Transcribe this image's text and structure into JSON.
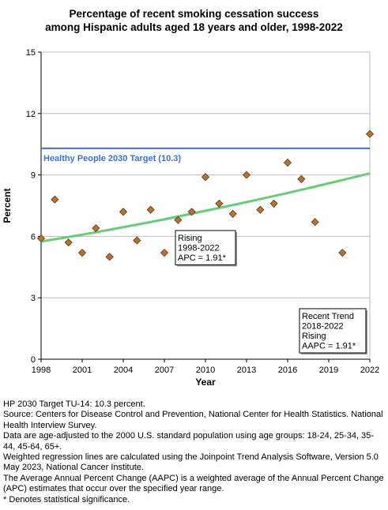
{
  "title": {
    "line1": "Percentage of recent smoking cessation success",
    "line2": "among Hispanic adults aged 18 years and older, 1998-2022"
  },
  "chart_data": {
    "type": "scatter",
    "xlabel": "Year",
    "ylabel": "Percent",
    "xlim": [
      1998,
      2022
    ],
    "ylim": [
      0,
      15
    ],
    "x_ticks": [
      "1998",
      "2001",
      "2004",
      "2007",
      "2010",
      "2013",
      "2016",
      "2019",
      "2022"
    ],
    "y_ticks": [
      "0",
      "3",
      "6",
      "9",
      "12",
      "15"
    ],
    "grid": true,
    "series": [
      {
        "type": "scatter",
        "marker": "diamond",
        "color": "#b87333",
        "x": [
          1998,
          1999,
          2000,
          2001,
          2002,
          2003,
          2004,
          2005,
          2006,
          2007,
          2008,
          2009,
          2010,
          2011,
          2012,
          2013,
          2014,
          2015,
          2016,
          2017,
          2018,
          2020,
          2022
        ],
        "y": [
          5.9,
          7.8,
          5.7,
          5.2,
          6.4,
          5.0,
          7.2,
          5.8,
          7.3,
          5.2,
          6.8,
          7.2,
          8.9,
          7.6,
          7.1,
          9.0,
          7.3,
          7.6,
          9.6,
          8.8,
          6.7,
          5.2,
          11.0
        ]
      },
      {
        "type": "line",
        "color": "#66cc77",
        "x": [
          1998,
          2000,
          2002,
          2004,
          2006,
          2008,
          2010,
          2012,
          2014,
          2016,
          2018,
          2020,
          2022
        ],
        "y": [
          5.75,
          5.97,
          6.2,
          6.45,
          6.7,
          6.97,
          7.25,
          7.53,
          7.82,
          8.12,
          8.43,
          8.75,
          9.08
        ]
      }
    ],
    "target": {
      "value": 10.3,
      "label": "Healthy People 2030 Target (10.3)",
      "color": "#3a6fd8"
    },
    "annotations": [
      {
        "lines": [
          "Rising",
          "1998-2022",
          "APC =  1.91*"
        ]
      },
      {
        "lines": [
          "Recent Trend",
          "2018-2022",
          "Rising",
          "AAPC =  1.91*"
        ]
      }
    ]
  },
  "notes": [
    "HP 2030 Target TU-14: 10.3 percent.",
    "Source: Centers for Disease Control and Prevention, National Center for Health Statistics. National Health Interview Survey.",
    "Data are age-adjusted to the 2000 U.S. standard population using age groups: 18-24, 25-34, 35-44, 45-64, 65+.",
    "Weighted regression lines are calculated using the Joinpoint Trend Analysis Software, Version 5.0 May 2023, National Cancer Institute.",
    "The Average Annual Percent Change (AAPC) is a weighted average of the Annual Percent Change (APC) estimates that occur over the specified year range.",
    "* Denotes statistical significance."
  ]
}
